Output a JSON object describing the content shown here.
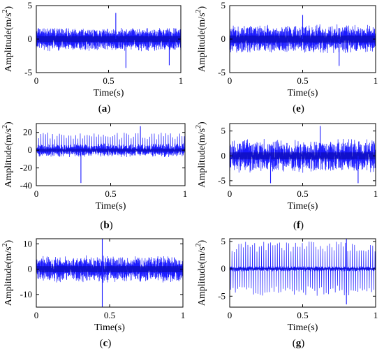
{
  "chart_data": [
    {
      "type": "line",
      "panel_label": "a",
      "xlabel": "Time(s)",
      "ylabel": "Amplitude(m/s",
      "ylabel_sup": "2",
      "ylabel_close": ")",
      "xlim": [
        0,
        1
      ],
      "ylim": [
        -5,
        5
      ],
      "xticks": [
        0,
        0.5,
        1
      ],
      "yticks": [
        5,
        0,
        -5
      ],
      "x_tick_labels": [
        "0",
        "0.5",
        "1"
      ],
      "y_tick_labels": [
        "5",
        "0",
        "-5"
      ],
      "grid": false,
      "series": [
        {
          "base": 1.3,
          "noise": 0.5,
          "spike_every": 0,
          "spike_amp": 0,
          "extremes": [
            [
              0.55,
              3.9
            ],
            [
              0.62,
              -4.3
            ],
            [
              0.92,
              -3.9
            ]
          ],
          "peak_max": 3.9,
          "peak_min": -4.3
        }
      ]
    },
    {
      "type": "line",
      "panel_label": "b",
      "xlabel": "Time(s)",
      "ylabel": "Amplitude(m/s",
      "ylabel_sup": "2",
      "ylabel_close": ")",
      "xlim": [
        0,
        1
      ],
      "ylim": [
        -40,
        30
      ],
      "xticks": [
        0,
        0.5,
        1
      ],
      "yticks": [
        20,
        0,
        -20,
        -40
      ],
      "x_tick_labels": [
        "0",
        "0.5",
        "1"
      ],
      "y_tick_labels": [
        "20",
        "0",
        "-20",
        "-40"
      ],
      "grid": false,
      "series": [
        {
          "base": 5,
          "noise": 3,
          "spike_every": 14,
          "spike_amp": 20,
          "extremes": [
            [
              0.3,
              -37
            ],
            [
              0.7,
              27
            ]
          ],
          "peak_max": 27,
          "peak_min": -37
        }
      ]
    },
    {
      "type": "line",
      "panel_label": "c",
      "xlabel": "Time(s)",
      "ylabel": "Amplitude(m/s",
      "ylabel_sup": "2",
      "ylabel_close": ")",
      "xlim": [
        0,
        1
      ],
      "ylim": [
        -15,
        12
      ],
      "xticks": [
        0,
        0.5,
        1
      ],
      "yticks": [
        10,
        0,
        -10
      ],
      "x_tick_labels": [
        "0",
        "0.5",
        "1"
      ],
      "y_tick_labels": [
        "10",
        "0",
        "-10"
      ],
      "grid": false,
      "series": [
        {
          "base": 3.5,
          "noise": 2,
          "spike_every": 0,
          "spike_amp": 0,
          "extremes": [
            [
              0.45,
              12
            ],
            [
              0.45,
              -15
            ]
          ],
          "peak_max": 12,
          "peak_min": -15
        }
      ]
    },
    {
      "type": "line",
      "panel_label": "e",
      "xlabel": "Time(s)",
      "ylabel": "Amplitude(m/s",
      "ylabel_sup": "2",
      "ylabel_close": ")",
      "xlim": [
        0,
        1
      ],
      "ylim": [
        -5,
        5
      ],
      "xticks": [
        0,
        0.5,
        1
      ],
      "yticks": [
        5,
        0,
        -5
      ],
      "x_tick_labels": [
        "0",
        "0.5",
        "1"
      ],
      "y_tick_labels": [
        "5",
        "0",
        "-5"
      ],
      "grid": false,
      "series": [
        {
          "base": 1.5,
          "noise": 0.8,
          "spike_every": 0,
          "spike_amp": 0,
          "extremes": [
            [
              0.5,
              3.6
            ],
            [
              0.75,
              -4.0
            ]
          ],
          "peak_max": 3.6,
          "peak_min": -4.0
        }
      ]
    },
    {
      "type": "line",
      "panel_label": "f",
      "xlabel": "Time(s)",
      "ylabel": "Amplitude(m/s",
      "ylabel_sup": "2",
      "ylabel_close": ")",
      "xlim": [
        0,
        1
      ],
      "ylim": [
        -6,
        6.5
      ],
      "xticks": [
        0,
        0.5,
        1
      ],
      "yticks": [
        5,
        0,
        -5
      ],
      "x_tick_labels": [
        "0",
        "0.5",
        "1"
      ],
      "y_tick_labels": [
        "5",
        "0",
        "-5"
      ],
      "grid": false,
      "series": [
        {
          "base": 2.0,
          "noise": 1.5,
          "spike_every": 0,
          "spike_amp": 0,
          "extremes": [
            [
              0.62,
              6.0
            ],
            [
              0.28,
              -5.5
            ],
            [
              0.88,
              -5.5
            ]
          ],
          "peak_max": 6.0,
          "peak_min": -5.5
        }
      ]
    },
    {
      "type": "line",
      "panel_label": "g",
      "xlabel": "Time(s)",
      "ylabel": "Amplitude(m/s",
      "ylabel_sup": "2",
      "ylabel_close": ")",
      "xlim": [
        0,
        1
      ],
      "ylim": [
        -7,
        5.5
      ],
      "xticks": [
        0,
        0.5,
        1
      ],
      "yticks": [
        5,
        0,
        -5
      ],
      "x_tick_labels": [
        "0",
        "0.5",
        "1"
      ],
      "y_tick_labels": [
        "5",
        "0",
        "-5"
      ],
      "grid": false,
      "series": [
        {
          "base": 0.3,
          "noise": 0.2,
          "spike_every": 7,
          "spike_amp": 5,
          "extremes": [
            [
              0.8,
              5.5
            ],
            [
              0.8,
              -6.5
            ]
          ],
          "peak_max": 5.5,
          "peak_min": -6.5
        }
      ]
    }
  ],
  "colors": {
    "signal": "#1a1aff",
    "signal_dark": "#000066",
    "axes": "#000000"
  }
}
